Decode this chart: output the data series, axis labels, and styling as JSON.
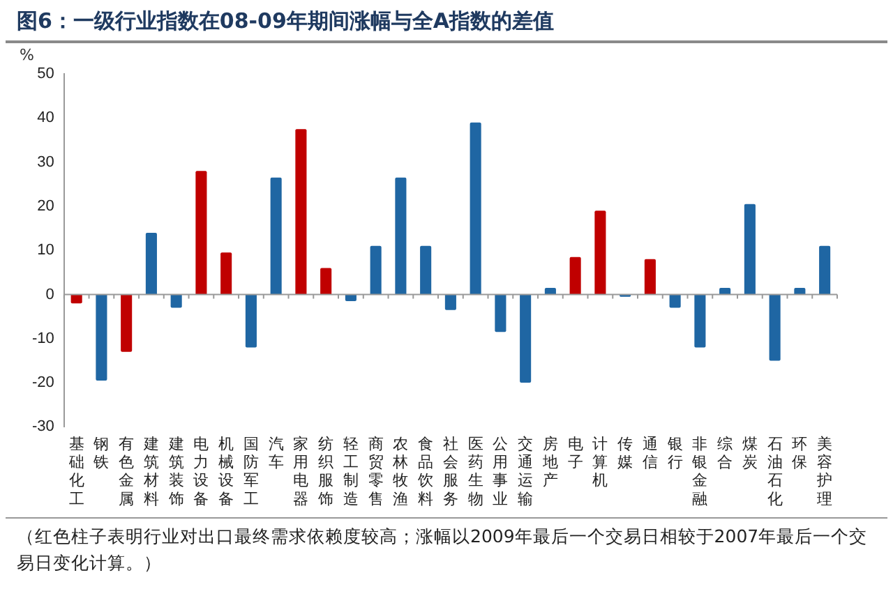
{
  "chart_data": {
    "type": "bar",
    "title": "图6：一级行业指数在08-09年期间涨幅与全A指数的差值",
    "ylabel": "%",
    "categories": [
      "基础化工",
      "钢铁",
      "有色金属",
      "建筑材料",
      "建筑装饰",
      "电力设备",
      "机械设备",
      "国防军工",
      "汽车",
      "家用电器",
      "纺织服饰",
      "轻工制造",
      "商贸零售",
      "农林牧渔",
      "食品饮料",
      "社会服务",
      "医药生物",
      "公用事业",
      "交通运输",
      "房地产",
      "电子",
      "计算机",
      "传媒",
      "通信",
      "银行",
      "非银金融",
      "综合",
      "煤炭",
      "石油石化",
      "环保",
      "美容护理"
    ],
    "values": [
      -2,
      -19.5,
      -13,
      14,
      -3,
      28,
      9.5,
      -12,
      26.5,
      37.5,
      6,
      -1.5,
      11,
      26.5,
      11,
      -3.5,
      39,
      -8.5,
      -20,
      1.5,
      8.5,
      19,
      -0.5,
      8,
      -3,
      -12,
      1.5,
      20.5,
      -15,
      1.5,
      11
    ],
    "colors": [
      "#c00000",
      "#1f66a3",
      "#c00000",
      "#1f66a3",
      "#1f66a3",
      "#c00000",
      "#c00000",
      "#1f66a3",
      "#1f66a3",
      "#c00000",
      "#c00000",
      "#1f66a3",
      "#1f66a3",
      "#1f66a3",
      "#1f66a3",
      "#1f66a3",
      "#1f66a3",
      "#1f66a3",
      "#1f66a3",
      "#1f66a3",
      "#c00000",
      "#c00000",
      "#1f66a3",
      "#c00000",
      "#1f66a3",
      "#1f66a3",
      "#1f66a3",
      "#1f66a3",
      "#1f66a3",
      "#1f66a3",
      "#1f66a3"
    ],
    "ylim": [
      -30,
      50
    ],
    "yticks": [
      -30,
      -20,
      -10,
      0,
      10,
      20,
      30,
      40,
      50
    ],
    "legend": false,
    "annotations": [
      "（红色柱子表明行业对出口最终需求依赖度较高；涨幅以2009年最后一个交易日相较于2007年最后一个交易日变化计算。）"
    ]
  }
}
